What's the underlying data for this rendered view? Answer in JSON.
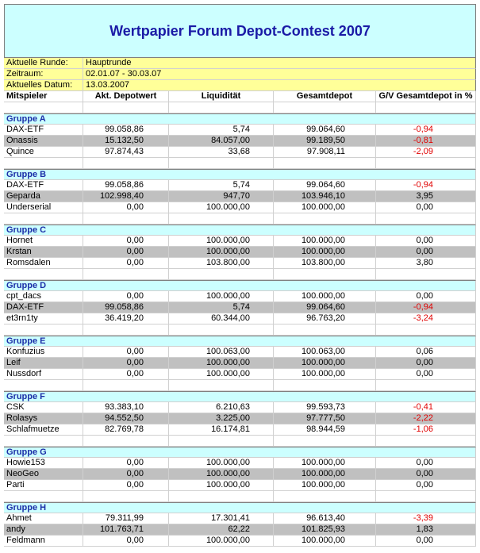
{
  "title": "Wertpapier Forum Depot-Contest 2007",
  "info": [
    [
      "Aktuelle Runde:",
      "Hauptrunde"
    ],
    [
      "Zeitraum:",
      "02.01.07 - 30.03.07"
    ],
    [
      "Aktuelles Datum:",
      "13.03.2007"
    ]
  ],
  "columns": [
    "Mitspieler",
    "Akt. Depotwert",
    "Liquidität",
    "Gesamtdepot",
    "G/V Gesamtdepot in %"
  ],
  "groups": [
    {
      "name": "Gruppe A",
      "rows": [
        [
          "DAX-ETF",
          "99.058,86",
          "5,74",
          "99.064,60",
          "-0,94"
        ],
        [
          "Onassis",
          "15.132,50",
          "84.057,00",
          "99.189,50",
          "-0,81"
        ],
        [
          "Quince",
          "97.874,43",
          "33,68",
          "97.908,11",
          "-2,09"
        ]
      ]
    },
    {
      "name": "Gruppe B",
      "rows": [
        [
          "DAX-ETF",
          "99.058,86",
          "5,74",
          "99.064,60",
          "-0,94"
        ],
        [
          "Geparda",
          "102.998,40",
          "947,70",
          "103.946,10",
          "3,95"
        ],
        [
          "Underserial",
          "0,00",
          "100.000,00",
          "100.000,00",
          "0,00"
        ]
      ]
    },
    {
      "name": "Gruppe C",
      "rows": [
        [
          "Hornet",
          "0,00",
          "100.000,00",
          "100.000,00",
          "0,00"
        ],
        [
          "Krstan",
          "0,00",
          "100.000,00",
          "100.000,00",
          "0,00"
        ],
        [
          "Romsdalen",
          "0,00",
          "103.800,00",
          "103.800,00",
          "3,80"
        ]
      ]
    },
    {
      "name": "Gruppe D",
      "rows": [
        [
          "cpt_dacs",
          "0,00",
          "100.000,00",
          "100.000,00",
          "0,00"
        ],
        [
          "DAX-ETF",
          "99.058,86",
          "5,74",
          "99.064,60",
          "-0,94"
        ],
        [
          "et3rn1ty",
          "36.419,20",
          "60.344,00",
          "96.763,20",
          "-3,24"
        ]
      ]
    },
    {
      "name": "Gruppe E",
      "rows": [
        [
          "Konfuzius",
          "0,00",
          "100.063,00",
          "100.063,00",
          "0,06"
        ],
        [
          "Leif",
          "0,00",
          "100.000,00",
          "100.000,00",
          "0,00"
        ],
        [
          "Nussdorf",
          "0,00",
          "100.000,00",
          "100.000,00",
          "0,00"
        ]
      ]
    },
    {
      "name": "Gruppe F",
      "rows": [
        [
          "CSK",
          "93.383,10",
          "6.210,63",
          "99.593,73",
          "-0,41"
        ],
        [
          "Rolasys",
          "94.552,50",
          "3.225,00",
          "97.777,50",
          "-2,22"
        ],
        [
          "Schlafmuetze",
          "82.769,78",
          "16.174,81",
          "98.944,59",
          "-1,06"
        ]
      ]
    },
    {
      "name": "Gruppe G",
      "rows": [
        [
          "Howie153",
          "0,00",
          "100.000,00",
          "100.000,00",
          "0,00"
        ],
        [
          "NeoGeo",
          "0,00",
          "100.000,00",
          "100.000,00",
          "0,00"
        ],
        [
          "Parti",
          "0,00",
          "100.000,00",
          "100.000,00",
          "0,00"
        ]
      ]
    },
    {
      "name": "Gruppe H",
      "rows": [
        [
          "Ahmet",
          "79.311,99",
          "17.301,41",
          "96.613,40",
          "-3,39"
        ],
        [
          "andy",
          "101.763,71",
          "62,22",
          "101.825,93",
          "1,83"
        ],
        [
          "Feldmann",
          "0,00",
          "100.000,00",
          "100.000,00",
          "0,00"
        ]
      ]
    }
  ]
}
